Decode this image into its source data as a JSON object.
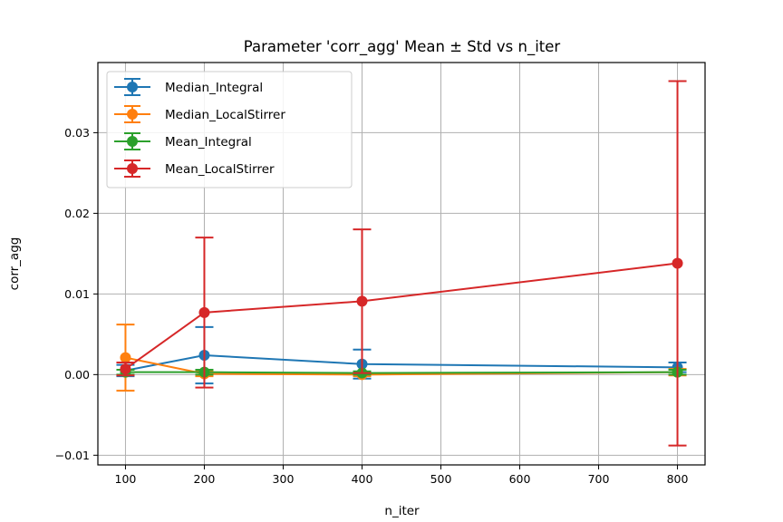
{
  "chart_data": {
    "type": "line",
    "title": "Parameter 'corr_agg' Mean ± Std vs n_iter",
    "xlabel": "n_iter",
    "ylabel": "corr_agg",
    "x": [
      100,
      200,
      400,
      800
    ],
    "xlim": [
      65,
      835
    ],
    "ylim": [
      -0.0112,
      0.0387
    ],
    "xticks": [
      100,
      200,
      300,
      400,
      500,
      600,
      700,
      800
    ],
    "xtick_labels": [
      "100",
      "200",
      "300",
      "400",
      "500",
      "600",
      "700",
      "800"
    ],
    "yticks": [
      -0.01,
      0.0,
      0.01,
      0.02,
      0.03
    ],
    "ytick_labels": [
      "−0.01",
      "0.00",
      "0.01",
      "0.02",
      "0.03"
    ],
    "grid": true,
    "legend_position": "top-left",
    "series": [
      {
        "name": "Median_Integral",
        "color": "#1f77b4",
        "values": [
          0.0005,
          0.0024,
          0.0013,
          0.0009
        ],
        "std": [
          0.0007,
          0.0035,
          0.0018,
          0.0006
        ]
      },
      {
        "name": "Median_LocalStirrer",
        "color": "#ff7f0e",
        "values": [
          0.0021,
          0.0001,
          0.0,
          0.0003
        ],
        "std": [
          0.0041,
          0.0003,
          0.0002,
          0.0004
        ]
      },
      {
        "name": "Mean_Integral",
        "color": "#2ca02c",
        "values": [
          0.0003,
          0.0003,
          0.0002,
          0.0003
        ],
        "std": [
          0.0003,
          0.0003,
          0.0002,
          0.0003
        ]
      },
      {
        "name": "Mean_LocalStirrer",
        "color": "#d62728",
        "values": [
          0.0007,
          0.0077,
          0.0091,
          0.0138
        ],
        "std": [
          0.0008,
          0.0093,
          0.0089,
          0.0226
        ]
      }
    ]
  }
}
